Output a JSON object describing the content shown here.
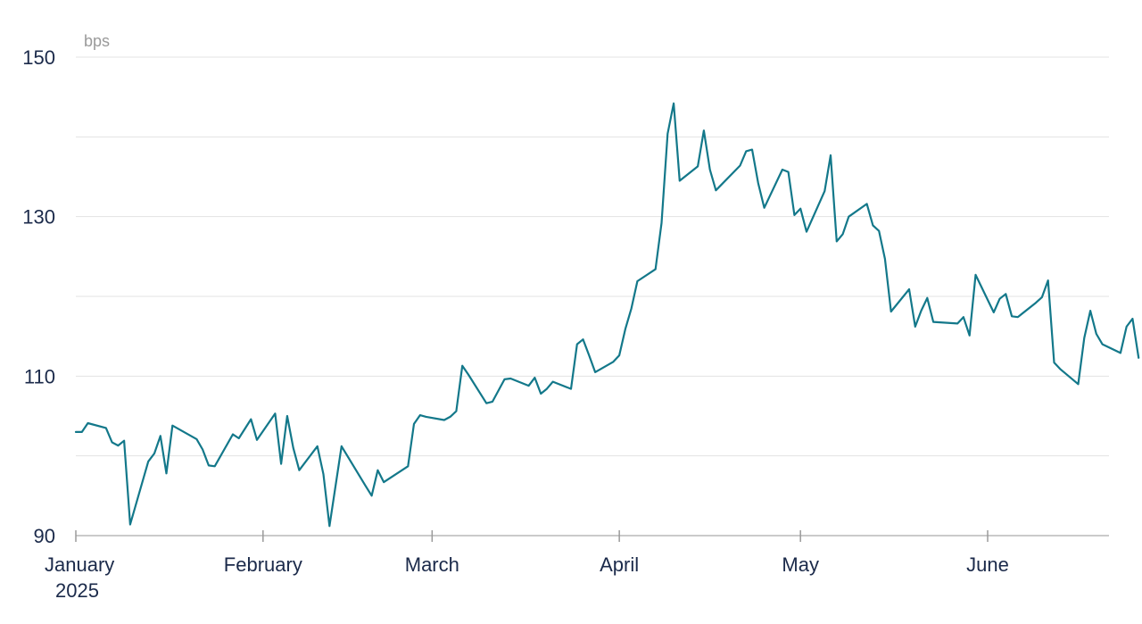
{
  "chart_data": {
    "type": "line",
    "title": "",
    "unit_label": "bps",
    "xlabel": "",
    "ylabel": "",
    "ylim": [
      90,
      150
    ],
    "y_ticks": [
      90,
      110,
      130,
      150
    ],
    "y_grid": [
      90,
      100,
      110,
      120,
      130,
      140,
      150
    ],
    "x_range": [
      "2025-01-01",
      "2025-06-20"
    ],
    "x_ticks": [
      {
        "date": "2025-01-01",
        "label": "January",
        "label2": "2025"
      },
      {
        "date": "2025-02-01",
        "label": "February",
        "label2": ""
      },
      {
        "date": "2025-03-01",
        "label": "March",
        "label2": ""
      },
      {
        "date": "2025-04-01",
        "label": "April",
        "label2": ""
      },
      {
        "date": "2025-05-01",
        "label": "May",
        "label2": ""
      },
      {
        "date": "2025-06-01",
        "label": "June",
        "label2": ""
      }
    ],
    "grid": true,
    "legend": "none",
    "series": [
      {
        "color": "#13788a",
        "points": [
          [
            "2025-01-01",
            103.0
          ],
          [
            "2025-01-02",
            103.0
          ],
          [
            "2025-01-03",
            104.1
          ],
          [
            "2025-01-06",
            103.5
          ],
          [
            "2025-01-07",
            101.7
          ],
          [
            "2025-01-08",
            101.3
          ],
          [
            "2025-01-09",
            101.9
          ],
          [
            "2025-01-10",
            91.4
          ],
          [
            "2025-01-13",
            99.3
          ],
          [
            "2025-01-14",
            100.3
          ],
          [
            "2025-01-15",
            102.5
          ],
          [
            "2025-01-16",
            97.8
          ],
          [
            "2025-01-17",
            103.8
          ],
          [
            "2025-01-21",
            102.1
          ],
          [
            "2025-01-22",
            100.8
          ],
          [
            "2025-01-23",
            98.8
          ],
          [
            "2025-01-24",
            98.7
          ],
          [
            "2025-01-27",
            102.7
          ],
          [
            "2025-01-28",
            102.2
          ],
          [
            "2025-01-30",
            104.6
          ],
          [
            "2025-01-31",
            102.0
          ],
          [
            "2025-02-03",
            105.3
          ],
          [
            "2025-02-04",
            99.0
          ],
          [
            "2025-02-05",
            105.0
          ],
          [
            "2025-02-06",
            101.0
          ],
          [
            "2025-02-07",
            98.2
          ],
          [
            "2025-02-10",
            101.2
          ],
          [
            "2025-02-11",
            97.7
          ],
          [
            "2025-02-12",
            91.2
          ],
          [
            "2025-02-14",
            101.2
          ],
          [
            "2025-02-18",
            96.2
          ],
          [
            "2025-02-19",
            95.0
          ],
          [
            "2025-02-20",
            98.2
          ],
          [
            "2025-02-21",
            96.7
          ],
          [
            "2025-02-25",
            98.7
          ],
          [
            "2025-02-26",
            104.0
          ],
          [
            "2025-02-27",
            105.1
          ],
          [
            "2025-02-28",
            104.9
          ],
          [
            "2025-03-03",
            104.5
          ],
          [
            "2025-03-04",
            104.9
          ],
          [
            "2025-03-05",
            105.6
          ],
          [
            "2025-03-06",
            111.3
          ],
          [
            "2025-03-07",
            110.2
          ],
          [
            "2025-03-10",
            106.6
          ],
          [
            "2025-03-11",
            106.8
          ],
          [
            "2025-03-13",
            109.6
          ],
          [
            "2025-03-14",
            109.7
          ],
          [
            "2025-03-17",
            108.8
          ],
          [
            "2025-03-18",
            109.8
          ],
          [
            "2025-03-19",
            107.8
          ],
          [
            "2025-03-20",
            108.4
          ],
          [
            "2025-03-21",
            109.3
          ],
          [
            "2025-03-24",
            108.4
          ],
          [
            "2025-03-25",
            114.0
          ],
          [
            "2025-03-26",
            114.6
          ],
          [
            "2025-03-27",
            112.6
          ],
          [
            "2025-03-28",
            110.5
          ],
          [
            "2025-03-31",
            111.8
          ],
          [
            "2025-04-01",
            112.6
          ],
          [
            "2025-04-02",
            115.9
          ],
          [
            "2025-04-03",
            118.5
          ],
          [
            "2025-04-04",
            121.9
          ],
          [
            "2025-04-07",
            123.4
          ],
          [
            "2025-04-08",
            129.2
          ],
          [
            "2025-04-09",
            140.4
          ],
          [
            "2025-04-10",
            144.2
          ],
          [
            "2025-04-11",
            134.5
          ],
          [
            "2025-04-14",
            136.3
          ],
          [
            "2025-04-15",
            140.8
          ],
          [
            "2025-04-16",
            135.9
          ],
          [
            "2025-04-17",
            133.3
          ],
          [
            "2025-04-21",
            136.4
          ],
          [
            "2025-04-22",
            138.2
          ],
          [
            "2025-04-23",
            138.4
          ],
          [
            "2025-04-24",
            134.2
          ],
          [
            "2025-04-25",
            131.1
          ],
          [
            "2025-04-28",
            135.9
          ],
          [
            "2025-04-29",
            135.6
          ],
          [
            "2025-04-30",
            130.2
          ],
          [
            "2025-05-01",
            131.0
          ],
          [
            "2025-05-02",
            128.1
          ],
          [
            "2025-05-05",
            133.2
          ],
          [
            "2025-05-06",
            137.7
          ],
          [
            "2025-05-07",
            126.9
          ],
          [
            "2025-05-08",
            127.8
          ],
          [
            "2025-05-09",
            130.0
          ],
          [
            "2025-05-12",
            131.6
          ],
          [
            "2025-05-13",
            128.9
          ],
          [
            "2025-05-14",
            128.2
          ],
          [
            "2025-05-15",
            124.7
          ],
          [
            "2025-05-16",
            118.1
          ],
          [
            "2025-05-19",
            120.9
          ],
          [
            "2025-05-20",
            116.2
          ],
          [
            "2025-05-21",
            118.2
          ],
          [
            "2025-05-22",
            119.8
          ],
          [
            "2025-05-23",
            116.8
          ],
          [
            "2025-05-27",
            116.6
          ],
          [
            "2025-05-28",
            117.4
          ],
          [
            "2025-05-29",
            115.1
          ],
          [
            "2025-05-30",
            122.7
          ],
          [
            "2025-06-02",
            118.0
          ],
          [
            "2025-06-03",
            119.7
          ],
          [
            "2025-06-04",
            120.3
          ],
          [
            "2025-06-05",
            117.5
          ],
          [
            "2025-06-06",
            117.4
          ],
          [
            "2025-06-09",
            119.2
          ],
          [
            "2025-06-10",
            119.9
          ],
          [
            "2025-06-11",
            122.0
          ],
          [
            "2025-06-12",
            111.7
          ],
          [
            "2025-06-13",
            110.9
          ],
          [
            "2025-06-16",
            109.0
          ],
          [
            "2025-06-17",
            114.8
          ],
          [
            "2025-06-18",
            118.2
          ],
          [
            "2025-06-19",
            115.3
          ],
          [
            "2025-06-20",
            114.0
          ],
          [
            "2025-06-23",
            112.9
          ],
          [
            "2025-06-24",
            116.2
          ],
          [
            "2025-06-25",
            117.2
          ],
          [
            "2025-06-26",
            112.3
          ]
        ]
      }
    ]
  }
}
